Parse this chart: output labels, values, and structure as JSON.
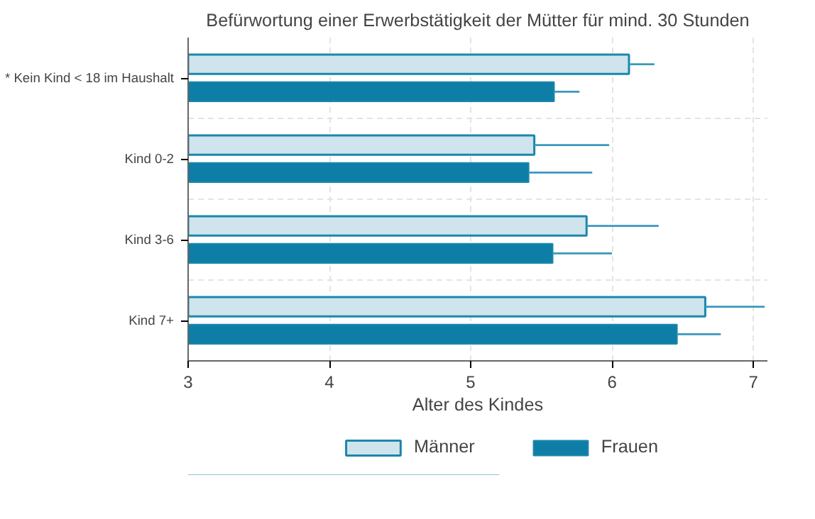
{
  "chart_data": {
    "type": "bar",
    "orientation": "horizontal",
    "title": "Befürwortung einer Erwerbstätigkeit der Mütter für mind. 30 Stunden",
    "xlabel": "Alter des Kindes",
    "categories": [
      "* Kein Kind < 18 im Haushalt",
      "Kind 0-2",
      "Kind 3-6",
      "Kind 7+"
    ],
    "series": [
      {
        "name": "Männer",
        "color": "#cfe4ec",
        "values": [
          6.12,
          5.45,
          5.82,
          6.66
        ],
        "errors": [
          [
            6.12,
            6.3
          ],
          [
            5.45,
            5.98
          ],
          [
            5.82,
            6.33
          ],
          [
            6.66,
            7.08
          ]
        ]
      },
      {
        "name": "Frauen",
        "color": "#0e7ea6",
        "values": [
          5.59,
          5.41,
          5.58,
          6.46
        ],
        "errors": [
          [
            5.59,
            5.77
          ],
          [
            5.41,
            5.86
          ],
          [
            5.58,
            6.0
          ],
          [
            6.46,
            6.77
          ]
        ]
      }
    ],
    "xlim": [
      3,
      7.1
    ],
    "xticks": [
      3,
      4,
      5,
      6,
      7
    ],
    "grid": true,
    "legend": "bottom"
  }
}
